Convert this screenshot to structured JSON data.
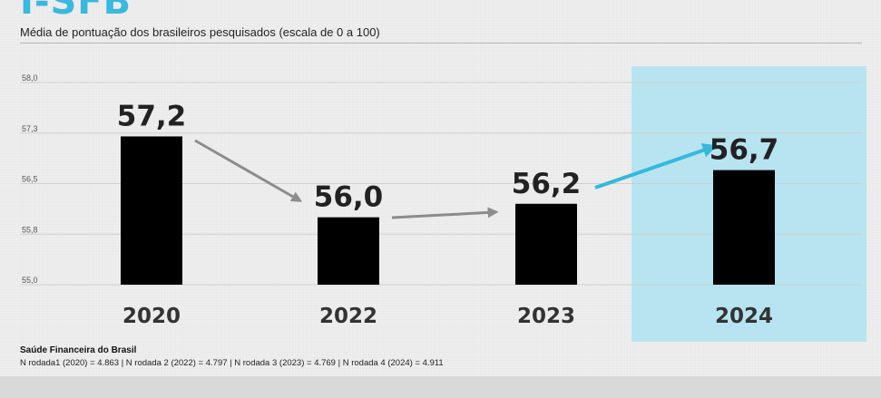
{
  "header": {
    "title": "I-SFB",
    "subtitle": "Média de pontuação dos brasileiros pesquisados (escala de 0 a 100)"
  },
  "footer": {
    "source": "Saúde Financeira do Brasil",
    "note": "N rodada1 (2020) = 4.863 | N rodada 2 (2022) = 4.797 | N rodada 3 (2023) = 4.769 | N rodada 4 (2024) = 4.911"
  },
  "colors": {
    "bar": "#000000",
    "highlight_bg": "#b7e4f0",
    "arrow_gray": "#8c8c8c",
    "arrow_blue": "#35b8db",
    "title": "#39b8e0"
  },
  "chart_data": {
    "type": "bar",
    "categories": [
      "2020",
      "2022",
      "2023",
      "2024"
    ],
    "values": [
      57.2,
      56.0,
      56.2,
      56.7
    ],
    "value_labels": [
      "57,2",
      "56,0",
      "56,2",
      "56,7"
    ],
    "ylim": [
      55.0,
      58.0
    ],
    "y_ticks": [
      55.0,
      55.75,
      56.5,
      57.25,
      58.0
    ],
    "y_tick_labels": [
      "55,0",
      "55,8",
      "56,5",
      "57,3",
      "58,0"
    ],
    "grid": true,
    "highlight_category": "2024",
    "arrows": [
      {
        "from": "2020",
        "to": "2022",
        "color": "gray"
      },
      {
        "from": "2022",
        "to": "2023",
        "color": "gray"
      },
      {
        "from": "2023",
        "to": "2024",
        "color": "blue"
      }
    ],
    "title": "I-SFB",
    "xlabel": "",
    "ylabel": ""
  }
}
